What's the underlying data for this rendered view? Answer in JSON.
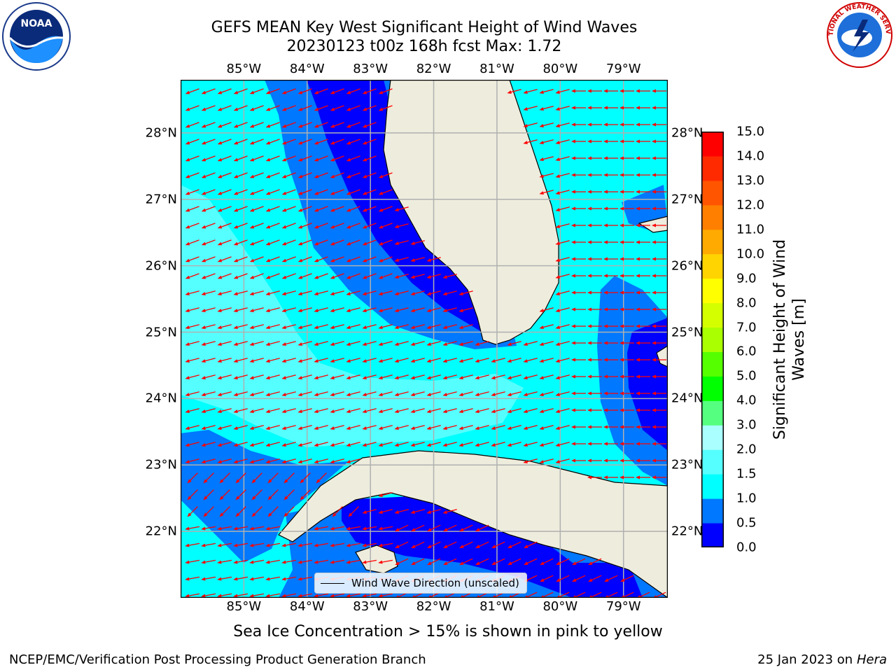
{
  "title_line1": "GEFS MEAN Key West Significant Height of Wind Waves",
  "title_line2": "20230123 t00z 168h fcst   Max: 1.72",
  "map": {
    "lon_ticks": [
      "85°W",
      "84°W",
      "83°W",
      "82°W",
      "81°W",
      "80°W",
      "79°W"
    ],
    "lat_ticks": [
      "28°N",
      "27°N",
      "26°N",
      "25°N",
      "24°N",
      "23°N",
      "22°N"
    ],
    "lon_values": [
      -85,
      -84,
      -83,
      -82,
      -81,
      -80,
      -79
    ],
    "lat_values": [
      28,
      27,
      26,
      25,
      24,
      23,
      22
    ],
    "lon_range": [
      -86,
      -78.3
    ],
    "lat_range": [
      21,
      28.8
    ],
    "arrow_color": "#ff0000",
    "land_color": "#eeecdd",
    "grid_color": "#b0b0b0"
  },
  "colorbar": {
    "label": "Significant Height of Wind Waves [m]",
    "ticks": [
      "15.0",
      "14.0",
      "13.0",
      "12.0",
      "11.0",
      "10.0",
      "9.0",
      "8.0",
      "7.0",
      "6.0",
      "5.0",
      "4.0",
      "3.0",
      "2.0",
      "1.5",
      "1.0",
      "0.5",
      "0.0"
    ],
    "levels": [
      0.0,
      0.5,
      1.0,
      1.5,
      2.0,
      3.0,
      4.0,
      5.0,
      6.0,
      7.0,
      8.0,
      9.0,
      10.0,
      11.0,
      12.0,
      13.0,
      14.0,
      15.0
    ],
    "colors": [
      "#0000ff",
      "#0078ff",
      "#00ffff",
      "#55ffff",
      "#aaffff",
      "#55ff7f",
      "#00ff00",
      "#55ff00",
      "#aaff00",
      "#d4ff00",
      "#ffff00",
      "#ffd400",
      "#ffaa00",
      "#ff7f00",
      "#ff5500",
      "#ff2a00",
      "#ff0000"
    ]
  },
  "legend": {
    "label": "Wind Wave Direction (unscaled)"
  },
  "footer": {
    "note": "Sea Ice Concentration > 15% is shown in pink to yellow",
    "left": "NCEP/EMC/Verification Post Processing Product Generation Branch",
    "right_date": "25 Jan 2023 on ",
    "right_host": "Hera"
  },
  "logos": {
    "noaa": "NOAA",
    "nws": "NATIONAL WEATHER SERVICE"
  }
}
